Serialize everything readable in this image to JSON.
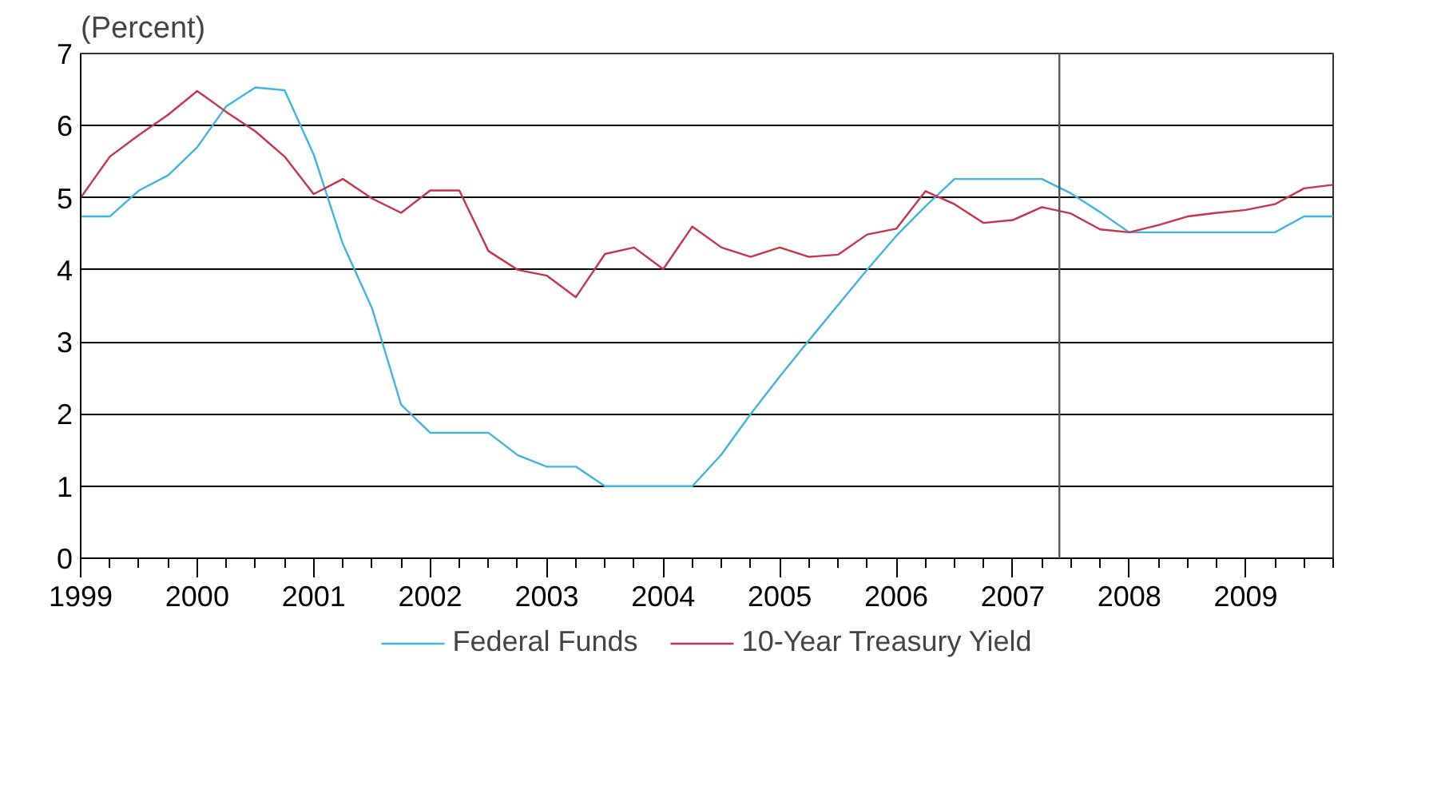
{
  "chart_data": {
    "type": "line",
    "ylabel": "(Percent)",
    "x": [
      1999,
      1999.25,
      1999.5,
      1999.75,
      2000,
      2000.25,
      2000.5,
      2000.75,
      2001,
      2001.25,
      2001.5,
      2001.75,
      2002,
      2002.25,
      2002.5,
      2002.75,
      2003,
      2003.25,
      2003.5,
      2003.75,
      2004,
      2004.25,
      2004.5,
      2004.75,
      2005,
      2005.25,
      2005.5,
      2005.75,
      2006,
      2006.25,
      2006.5,
      2006.75,
      2007,
      2007.25,
      2007.5,
      2007.75,
      2008,
      2008.25,
      2008.5,
      2008.75,
      2009,
      2009.25,
      2009.5,
      2009.75
    ],
    "series": [
      {
        "name": "Federal Funds",
        "color": "#3fb4e0",
        "values": [
          4.74,
          4.74,
          5.1,
          5.31,
          5.7,
          6.27,
          6.53,
          6.49,
          5.6,
          4.36,
          3.47,
          2.13,
          1.74,
          1.74,
          1.74,
          1.43,
          1.27,
          1.27,
          1.0,
          1.0,
          1.0,
          1.0,
          1.44,
          2.0,
          2.52,
          3.02,
          3.51,
          4.0,
          4.47,
          4.88,
          5.26,
          5.26,
          5.26,
          5.26,
          5.06,
          4.8,
          4.52,
          4.52,
          4.52,
          4.52,
          4.52,
          4.52,
          4.74,
          4.74
        ]
      },
      {
        "name": "10-Year Treasury Yield",
        "color": "#c8324a",
        "values": [
          5.0,
          5.57,
          5.87,
          6.15,
          6.48,
          6.19,
          5.92,
          5.57,
          5.05,
          5.26,
          4.99,
          4.79,
          5.1,
          5.1,
          4.26,
          4.0,
          3.92,
          3.62,
          4.22,
          4.31,
          4.01,
          4.6,
          4.31,
          4.18,
          4.31,
          4.18,
          4.21,
          4.49,
          4.57,
          5.09,
          4.91,
          4.65,
          4.69,
          4.87,
          4.78,
          4.56,
          4.52,
          4.62,
          4.74,
          4.79,
          4.83,
          4.91,
          5.13,
          5.18
        ]
      }
    ],
    "xlim": [
      1999,
      2009.75
    ],
    "xticks": [
      1999,
      {
        "value": 1999.25,
        "label": null
      },
      {
        "value": 1999.5,
        "label": null
      },
      {
        "value": 1999.75,
        "label": null
      },
      2000,
      {
        "value": 2000.25,
        "label": null
      },
      {
        "value": 2000.5,
        "label": null
      },
      {
        "value": 2000.75,
        "label": null
      },
      2001,
      {
        "value": 2001.25,
        "label": null
      },
      {
        "value": 2001.5,
        "label": null
      },
      {
        "value": 2001.75,
        "label": null
      },
      2002,
      {
        "value": 2002.25,
        "label": null
      },
      {
        "value": 2002.5,
        "label": null
      },
      {
        "value": 2002.75,
        "label": null
      },
      2003,
      {
        "value": 2003.25,
        "label": null
      },
      {
        "value": 2003.5,
        "label": null
      },
      {
        "value": 2003.75,
        "label": null
      },
      2004,
      {
        "value": 2004.25,
        "label": null
      },
      {
        "value": 2004.5,
        "label": null
      },
      {
        "value": 2004.75,
        "label": null
      },
      2005,
      {
        "value": 2005.25,
        "label": null
      },
      {
        "value": 2005.5,
        "label": null
      },
      {
        "value": 2005.75,
        "label": null
      },
      2006,
      {
        "value": 2006.25,
        "label": null
      },
      {
        "value": 2006.5,
        "label": null
      },
      {
        "value": 2006.75,
        "label": null
      },
      2007,
      {
        "value": 2007.25,
        "label": null
      },
      {
        "value": 2007.5,
        "label": null
      },
      {
        "value": 2007.75,
        "label": null
      },
      2008,
      {
        "value": 2008.25,
        "label": null
      },
      {
        "value": 2008.5,
        "label": null
      },
      {
        "value": 2008.75,
        "label": null
      },
      2009,
      {
        "value": 2009.25,
        "label": null
      },
      {
        "value": 2009.5,
        "label": null
      },
      {
        "value": 2009.75,
        "label": null
      }
    ],
    "ylim": [
      0,
      7
    ],
    "yticks": [
      0,
      1,
      2,
      3,
      4,
      5,
      6,
      7
    ],
    "ref_lines": [
      {
        "axis": "x",
        "value": 2007.4,
        "color": "#555555"
      }
    ],
    "grid": "y",
    "legend": "bottom",
    "marker": "none",
    "line_style": "solid"
  }
}
